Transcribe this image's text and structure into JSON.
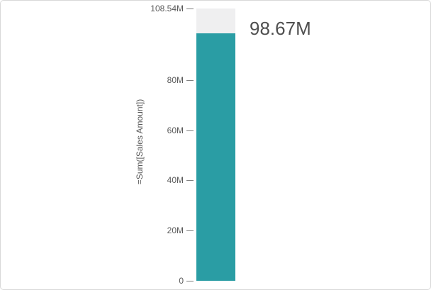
{
  "frame": {
    "background": "#ffffff",
    "border_color": "#d8d8d8"
  },
  "chart_data": {
    "type": "bar",
    "title": "",
    "xlabel": "",
    "ylabel": "=Sum([Sales Amount])",
    "categories": [
      ""
    ],
    "series": [
      {
        "name": "=Sum([Sales Amount])",
        "values": [
          98670000
        ]
      }
    ],
    "value_label": "98.67M",
    "ylim": [
      0,
      108540000
    ],
    "axis_max_label": "108.54M",
    "ticks": [
      {
        "value": 0,
        "label": "0"
      },
      {
        "value": 20000000,
        "label": "20M"
      },
      {
        "value": 40000000,
        "label": "40M"
      },
      {
        "value": 60000000,
        "label": "60M"
      },
      {
        "value": 80000000,
        "label": "80M"
      },
      {
        "value": 108540000,
        "label": "108.54M"
      }
    ],
    "grid": false,
    "legend": false,
    "colors": {
      "bar_fill": "#2a9da4",
      "bar_background": "#efeff0",
      "axis_text": "#595959",
      "value_text": "#4f4f4f",
      "tick_mark": "#808080"
    }
  }
}
